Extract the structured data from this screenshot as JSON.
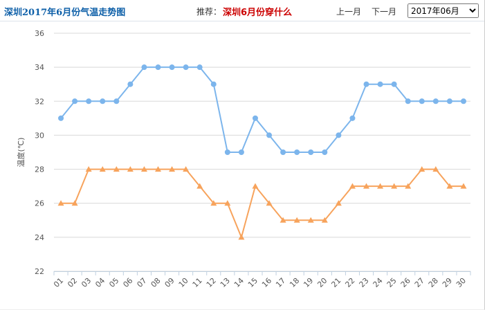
{
  "header": {
    "title": "深圳2017年6月份气温走势图",
    "recommend_label": "推荐：",
    "recommend_link": "深圳6月份穿什么",
    "prev": "上一月",
    "next": "下一月",
    "month_select": "2017年06月"
  },
  "chart_data": {
    "type": "line",
    "y_label": "温度(℃)",
    "categories": [
      "01",
      "02",
      "03",
      "04",
      "05",
      "06",
      "07",
      "08",
      "09",
      "10",
      "11",
      "12",
      "13",
      "14",
      "15",
      "16",
      "17",
      "18",
      "19",
      "20",
      "21",
      "22",
      "23",
      "24",
      "25",
      "26",
      "27",
      "28",
      "29",
      "30"
    ],
    "series": [
      {
        "color": "#7cb5ec",
        "marker": "circle",
        "values": [
          31,
          32,
          32,
          32,
          32,
          33,
          34,
          34,
          34,
          34,
          34,
          33,
          29,
          29,
          31,
          30,
          29,
          29,
          29,
          29,
          30,
          31,
          33,
          33,
          33,
          32,
          32,
          32,
          32,
          32
        ]
      },
      {
        "color": "#f7a35c",
        "marker": "triangle",
        "values": [
          26,
          26,
          28,
          28,
          28,
          28,
          28,
          28,
          28,
          28,
          27,
          26,
          26,
          24,
          27,
          26,
          25,
          25,
          25,
          25,
          26,
          27,
          27,
          27,
          27,
          27,
          28,
          28,
          27,
          27
        ]
      }
    ],
    "ylim": [
      22,
      36
    ],
    "yticks": [
      22,
      24,
      26,
      28,
      30,
      32,
      34,
      36
    ],
    "grid": true
  }
}
